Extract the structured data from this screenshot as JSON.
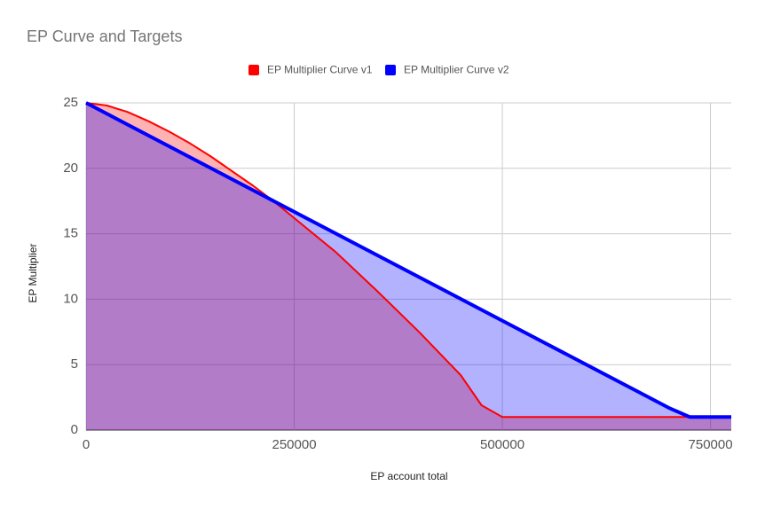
{
  "chart_data": {
    "type": "area",
    "title": "EP Curve and Targets",
    "x_label": "EP account total",
    "y_label": "EP Multiplier",
    "xlim": [
      0,
      775000
    ],
    "xticks": [
      0,
      250000,
      500000,
      750000
    ],
    "ylim": [
      0,
      25
    ],
    "yticks": [
      0,
      5,
      10,
      15,
      20,
      25
    ],
    "grid": true,
    "legend": "top",
    "series": [
      {
        "name": "EP Multiplier Curve v1",
        "color": "#ff0000",
        "x": [
          0,
          25000,
          50000,
          75000,
          100000,
          125000,
          150000,
          175000,
          200000,
          225000,
          250000,
          300000,
          350000,
          400000,
          450000,
          475000,
          500000,
          725000,
          775000
        ],
        "values": [
          25,
          24.8,
          24.3,
          23.6,
          22.8,
          21.9,
          20.9,
          19.8,
          18.7,
          17.5,
          16.2,
          13.6,
          10.6,
          7.5,
          4.2,
          1.9,
          1,
          1,
          1
        ]
      },
      {
        "name": "EP Multiplier Curve v2",
        "color": "#0000ff",
        "x": [
          0,
          700000,
          725000,
          775000
        ],
        "values": [
          25,
          1.7,
          1,
          1
        ]
      }
    ]
  }
}
